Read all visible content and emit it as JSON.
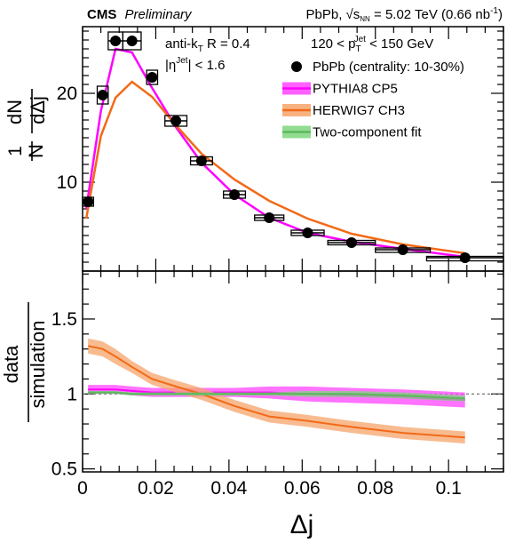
{
  "header": {
    "experiment": "CMS",
    "status": "Preliminary",
    "collision": "PbPb, √s",
    "sqrt_sub": "NN",
    "energy": " = 5.02 TeV (0.66 nb",
    "lumi_sup": "-1",
    "lumi_close": ")"
  },
  "annotations": {
    "jet_algo": "anti-k",
    "jet_algo_sub": "T",
    "jet_radius": " R = 0.4",
    "eta_cut_open": "|η",
    "eta_cut_sup": "Jet",
    "eta_cut_close": "| < 1.6",
    "pt_range_low": "120 < p",
    "pt_sub": "T",
    "pt_sup": "Jet",
    "pt_range_high": " < 150 GeV"
  },
  "legend": [
    {
      "label": "PbPb (centrality: 10-30%)",
      "kind": "marker",
      "color": "#000000"
    },
    {
      "label": "PYTHIA8 CP5",
      "kind": "band",
      "color": "#ff00ff",
      "band_color": "#ff44ff"
    },
    {
      "label": "HERWIG7 CH3",
      "kind": "band",
      "color": "#f26a18",
      "band_color": "#f6a46a"
    },
    {
      "label": "Two-component fit",
      "kind": "band",
      "color": "#5cb85c",
      "band_color": "#7fd67f"
    }
  ],
  "chart_data": [
    {
      "type": "scatter",
      "panel": "top",
      "ylabel_num": "1",
      "ylabel_den": "N",
      "ylabel_frac_num": "dN",
      "ylabel_frac_den": "dΔj",
      "xlim": [
        0,
        0.115
      ],
      "ylim": [
        0,
        27.5
      ],
      "y_ticks": [
        10,
        20
      ],
      "data": {
        "name": "PbPb (centrality: 10-30%)",
        "x": [
          0.0015,
          0.0055,
          0.009,
          0.0135,
          0.019,
          0.0255,
          0.0325,
          0.0415,
          0.051,
          0.0615,
          0.0735,
          0.0875,
          0.1045
        ],
        "y": [
          7.8,
          19.8,
          25.9,
          25.9,
          21.8,
          16.9,
          12.4,
          8.6,
          6.0,
          4.3,
          3.2,
          2.4,
          1.5
        ],
        "x_err": [
          0.0015,
          0.0015,
          0.002,
          0.0025,
          0.0015,
          0.003,
          0.003,
          0.003,
          0.004,
          0.0045,
          0.0065,
          0.0075,
          0.0105
        ],
        "y_sys": [
          0.5,
          1.0,
          1.0,
          1.0,
          0.8,
          0.6,
          0.45,
          0.4,
          0.3,
          0.3,
          0.25,
          0.2,
          0.15
        ]
      },
      "models": [
        {
          "name": "PYTHIA8 CP5",
          "x": [
            0.001,
            0.005,
            0.009,
            0.0135,
            0.019,
            0.0255,
            0.0325,
            0.0415,
            0.051,
            0.0615,
            0.0735,
            0.0875,
            0.1045
          ],
          "y": [
            7.0,
            18.0,
            25.0,
            24.6,
            20.6,
            16.2,
            12.2,
            8.6,
            6.0,
            4.3,
            3.3,
            2.5,
            1.6
          ]
        },
        {
          "name": "HERWIG7 CH3",
          "x": [
            0.001,
            0.005,
            0.009,
            0.0135,
            0.019,
            0.0255,
            0.0325,
            0.0415,
            0.051,
            0.0615,
            0.0735,
            0.0875,
            0.1045
          ],
          "y": [
            5.9,
            15.2,
            19.5,
            21.3,
            19.6,
            16.4,
            13.2,
            10.3,
            7.9,
            5.9,
            4.2,
            3.0,
            2.0
          ]
        }
      ]
    },
    {
      "type": "line",
      "panel": "bottom",
      "ylabel_num": "data",
      "ylabel_den": "simulation",
      "xlabel": "Δj",
      "xlim": [
        0,
        0.115
      ],
      "ylim": [
        0.48,
        1.82
      ],
      "y_ticks": [
        0.5,
        1,
        1.5
      ],
      "y_tick_labels": [
        "0.5",
        "1",
        "1.5"
      ],
      "x_ticks": [
        0,
        0.02,
        0.04,
        0.06,
        0.08,
        0.1
      ],
      "x_tick_labels": [
        "0",
        "0.02",
        "0.04",
        "0.06",
        "0.08",
        "0.1"
      ],
      "reference_line": 1.0,
      "series": [
        {
          "name": "PYTHIA8 CP5",
          "x": [
            0.0015,
            0.0055,
            0.009,
            0.0135,
            0.019,
            0.0255,
            0.0325,
            0.0415,
            0.051,
            0.0615,
            0.0735,
            0.0875,
            0.1045
          ],
          "values": [
            1.03,
            1.03,
            1.03,
            1.02,
            1.01,
            1.01,
            1.01,
            1.01,
            1.01,
            1.0,
            0.99,
            0.98,
            0.96
          ],
          "band": [
            0.03,
            0.03,
            0.03,
            0.03,
            0.03,
            0.03,
            0.03,
            0.03,
            0.04,
            0.05,
            0.05,
            0.05,
            0.05
          ]
        },
        {
          "name": "HERWIG7 CH3",
          "x": [
            0.0015,
            0.0055,
            0.009,
            0.0135,
            0.019,
            0.0255,
            0.0325,
            0.0415,
            0.051,
            0.0615,
            0.0735,
            0.0875,
            0.1045
          ],
          "values": [
            1.32,
            1.3,
            1.25,
            1.18,
            1.1,
            1.05,
            1.0,
            0.92,
            0.85,
            0.82,
            0.78,
            0.74,
            0.71
          ],
          "band": [
            0.05,
            0.05,
            0.05,
            0.04,
            0.04,
            0.04,
            0.04,
            0.04,
            0.04,
            0.04,
            0.04,
            0.04,
            0.04
          ]
        },
        {
          "name": "Two-component fit",
          "x": [
            0.0015,
            0.0055,
            0.009,
            0.0135,
            0.019,
            0.0255,
            0.0325,
            0.0415,
            0.051,
            0.0615,
            0.0735,
            0.0875,
            0.1045
          ],
          "values": [
            1.01,
            1.01,
            1.01,
            1.0,
            1.0,
            1.0,
            1.0,
            1.0,
            1.0,
            1.0,
            1.0,
            0.99,
            0.97
          ],
          "band": [
            0.01,
            0.01,
            0.01,
            0.01,
            0.01,
            0.01,
            0.01,
            0.01,
            0.01,
            0.02,
            0.02,
            0.02,
            0.02
          ]
        }
      ]
    }
  ]
}
